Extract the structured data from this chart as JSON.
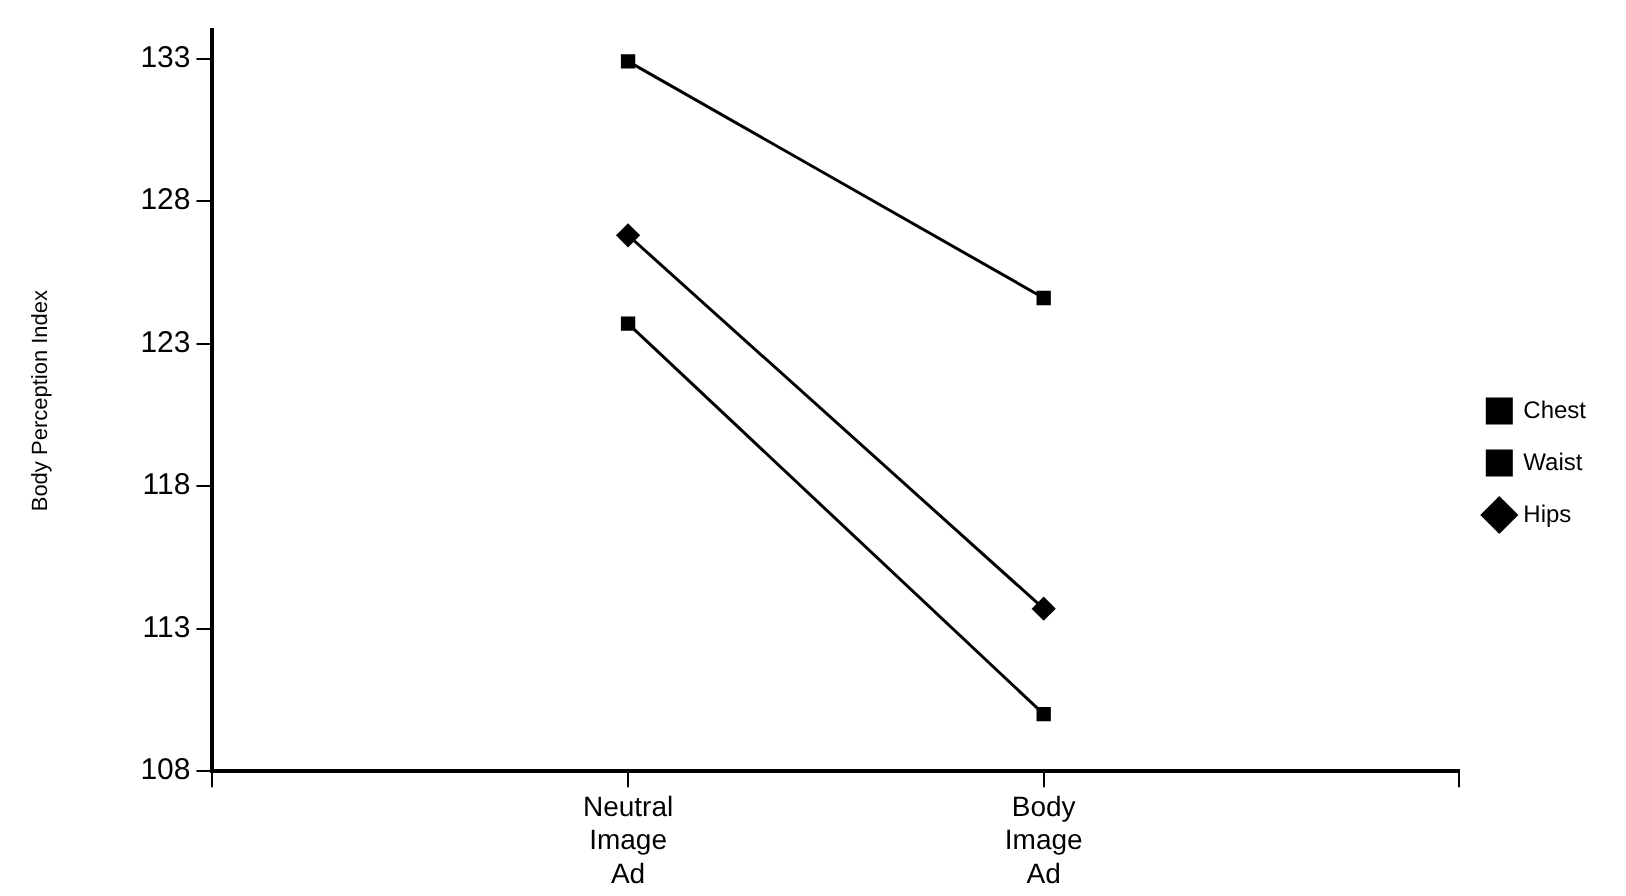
{
  "chart_data": {
    "type": "line",
    "ylabel": "Body Perception Index",
    "categories": [
      null,
      "Neutral Image Ad",
      "Body Image Ad",
      null
    ],
    "series": [
      {
        "name": "Chest",
        "color": "#000000",
        "marker": "square",
        "values": [
          null,
          132.9,
          124.6,
          null
        ]
      },
      {
        "name": "Waist",
        "color": "#000000",
        "marker": "square",
        "values": [
          null,
          123.7,
          110.0,
          null
        ]
      },
      {
        "name": "Hips",
        "color": "#000000",
        "marker": "diamond",
        "values": [
          null,
          126.8,
          113.7,
          null
        ]
      }
    ],
    "ylim": [
      108,
      134
    ],
    "yticks": [
      108,
      113,
      118,
      123,
      128,
      133
    ],
    "grid": false,
    "legend": "right",
    "line_style": "solid"
  }
}
